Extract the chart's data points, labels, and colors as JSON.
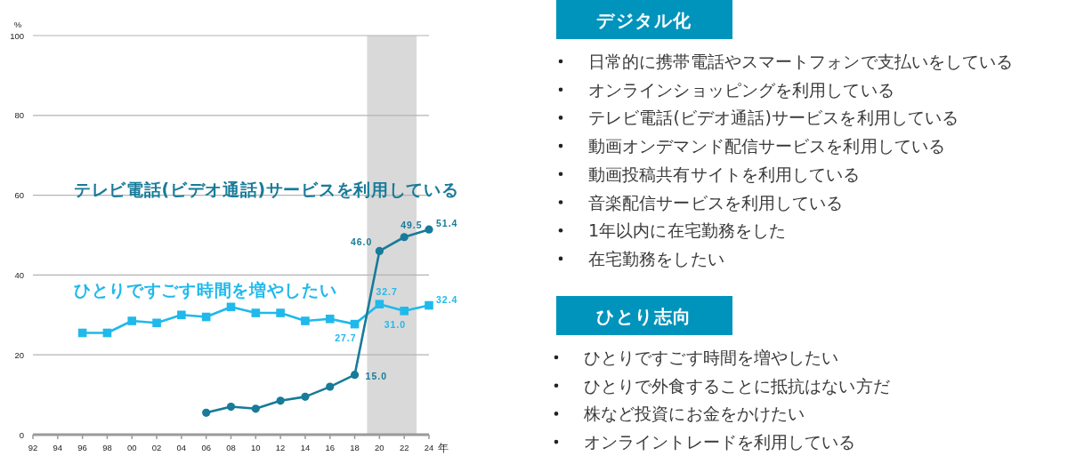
{
  "chart_data": [
    {
      "type": "line",
      "xlabel": "年",
      "ylabel": "%",
      "xlim": [
        1992,
        2024
      ],
      "xticks": [
        {
          "value": 1992,
          "label": "92"
        },
        {
          "value": 1994,
          "label": "94"
        },
        {
          "value": 1996,
          "label": "96"
        },
        {
          "value": 1998,
          "label": "98"
        },
        {
          "value": 2000,
          "label": "00"
        },
        {
          "value": 2002,
          "label": "02"
        },
        {
          "value": 2004,
          "label": "04"
        },
        {
          "value": 2006,
          "label": "06"
        },
        {
          "value": 2008,
          "label": "08"
        },
        {
          "value": 2010,
          "label": "10"
        },
        {
          "value": 2012,
          "label": "12"
        },
        {
          "value": 2014,
          "label": "14"
        },
        {
          "value": 2016,
          "label": "16"
        },
        {
          "value": 2018,
          "label": "18"
        },
        {
          "value": 2020,
          "label": "20"
        },
        {
          "value": 2022,
          "label": "22"
        },
        {
          "value": 2024,
          "label": "24"
        }
      ],
      "ylim": [
        0,
        100
      ],
      "yticks": [
        0,
        20,
        40,
        60,
        80,
        100
      ],
      "grid": "y",
      "bands": [
        {
          "axis": "x",
          "from": 2019,
          "to": 2023,
          "color": "#d9d9d9"
        }
      ],
      "series": [
        {
          "name": "ひとりですごす時間を増やしたい",
          "color": "#1fb9ec",
          "marker": "square",
          "x": [
            1996,
            1998,
            2000,
            2002,
            2004,
            2006,
            2008,
            2010,
            2012,
            2014,
            2016,
            2018,
            2020,
            2022,
            2024
          ],
          "values": [
            25.5,
            25.5,
            28.5,
            28.0,
            30.0,
            29.5,
            32.0,
            30.5,
            30.5,
            28.5,
            29.0,
            27.7,
            32.7,
            31.0,
            32.4
          ],
          "value_labels": [
            null,
            null,
            null,
            null,
            null,
            null,
            null,
            null,
            null,
            null,
            null,
            "27.7",
            "32.7",
            "31.0",
            "32.4"
          ]
        },
        {
          "name": "テレビ電話(ビデオ通話)サービスを利用している",
          "color": "#177b99",
          "marker": "circle",
          "x": [
            2006,
            2008,
            2010,
            2012,
            2014,
            2016,
            2018,
            2020,
            2022,
            2024
          ],
          "values": [
            5.5,
            7.0,
            6.5,
            8.5,
            9.5,
            12.0,
            15.0,
            46.0,
            49.5,
            51.4
          ],
          "value_labels": [
            null,
            null,
            null,
            null,
            null,
            null,
            "15.0",
            "46.0",
            "49.5",
            "51.4"
          ]
        }
      ]
    },
    {
      "type": "other",
      "title": "デジタル化",
      "annotations": [
        "日常的に携帯電話やスマートフォンで支払いをしている",
        "オンラインショッピングを利用している",
        "テレビ電話(ビデオ通話)サービスを利用している",
        "動画オンデマンド配信サービスを利用している",
        "動画投稿共有サイトを利用している",
        "音楽配信サービスを利用している",
        "1年以内に在宅勤務をした",
        "在宅勤務をしたい"
      ]
    },
    {
      "type": "other",
      "title": "ひとり志向",
      "annotations": [
        "ひとりですごす時間を増やしたい",
        "ひとりで外食することに抵抗はない方だ",
        "株など投資にお金をかけたい",
        "オンライントレードを利用している"
      ]
    }
  ]
}
